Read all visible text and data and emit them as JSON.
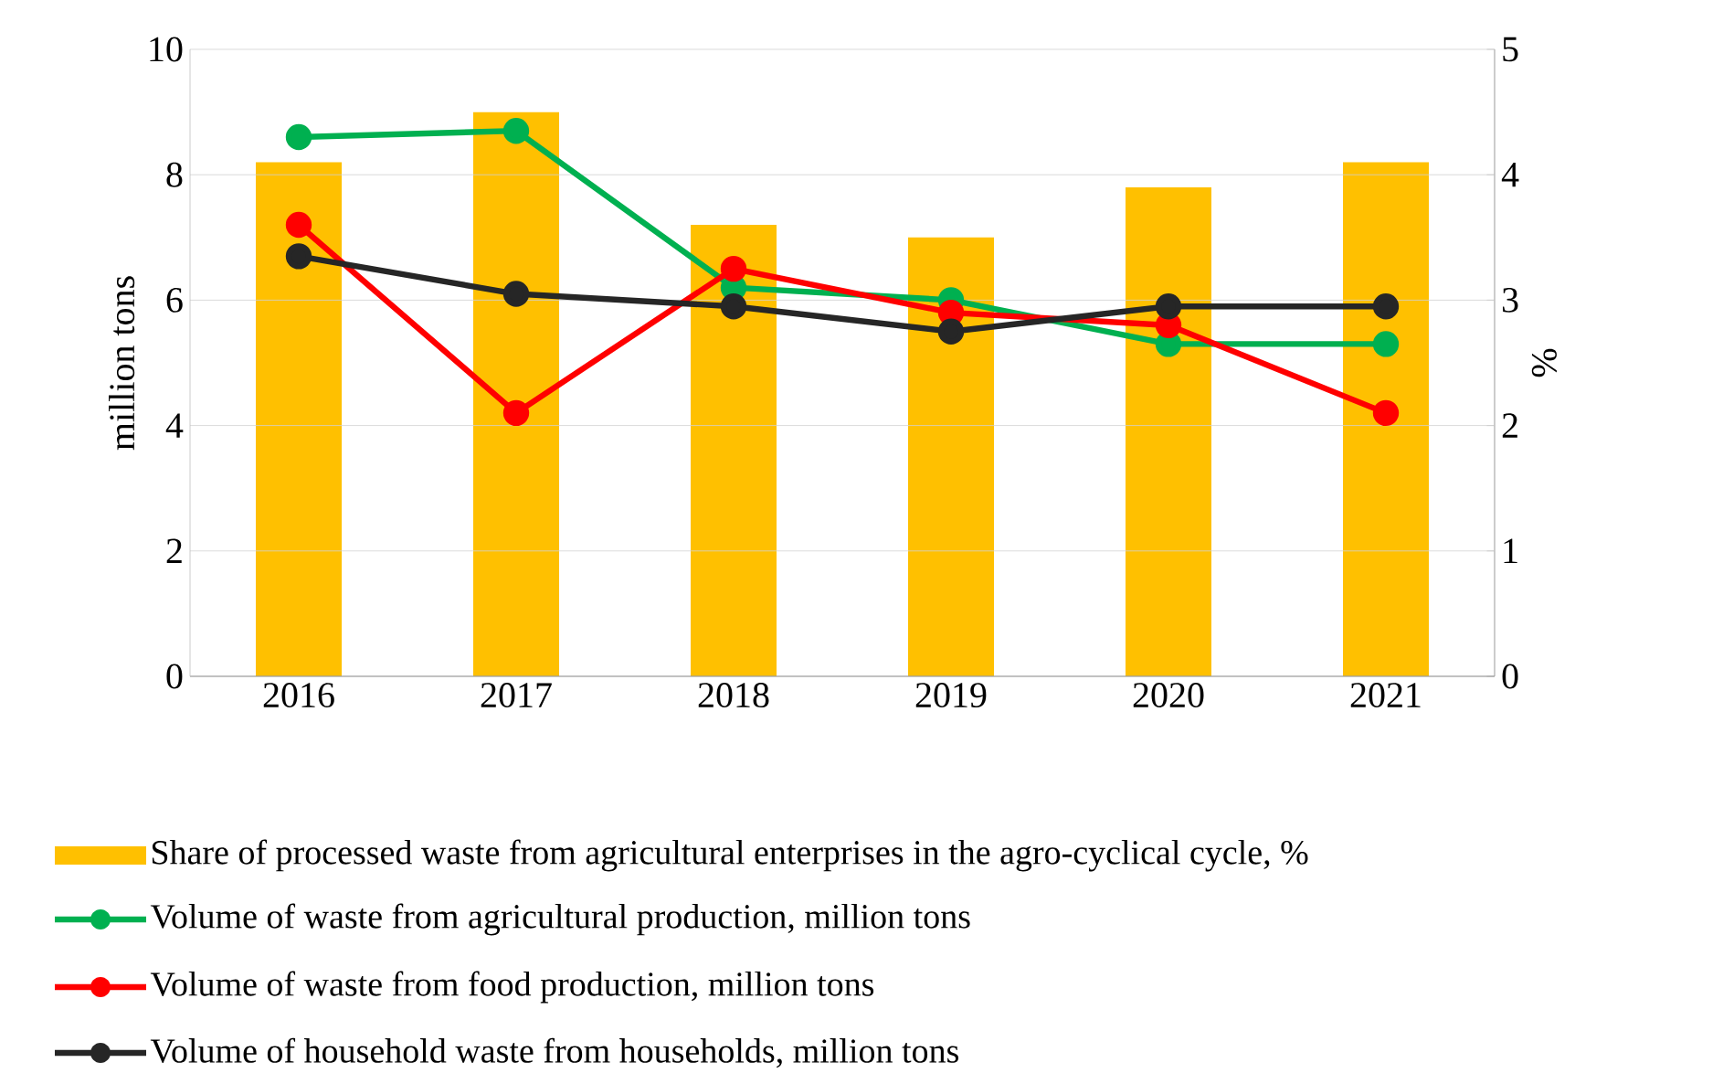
{
  "chart_data": {
    "type": "line",
    "categories": [
      "2016",
      "2017",
      "2018",
      "2019",
      "2020",
      "2021"
    ],
    "ylabel": "million tons",
    "y2label": "%",
    "ylim": [
      0,
      10
    ],
    "yticks": [
      0,
      2,
      4,
      6,
      8,
      10
    ],
    "y2lim": [
      0,
      5
    ],
    "y2ticks": [
      0,
      1,
      2,
      3,
      4,
      5
    ],
    "grid": "y",
    "legend": "bottom",
    "marker": "circle",
    "line_style": "solid",
    "series": [
      {
        "name": "Share of processed waste from agricultural enterprises in the agro-cyclical cycle, %",
        "type": "bar",
        "axis": "y2",
        "color": "#ffc000",
        "values": [
          4.1,
          4.5,
          3.6,
          3.5,
          3.9,
          4.1
        ]
      },
      {
        "name": "Volume of waste from agricultural production, million tons",
        "color": "#00b050",
        "values": [
          8.6,
          8.7,
          6.2,
          6.0,
          5.3,
          5.3
        ]
      },
      {
        "name": "Volume of waste from food production, million tons",
        "color": "#ff0000",
        "values": [
          7.2,
          4.2,
          6.5,
          5.8,
          5.6,
          4.2
        ]
      },
      {
        "name": "Volume of household waste from households, million tons",
        "color": "#262626",
        "values": [
          6.7,
          6.1,
          5.9,
          5.5,
          5.9,
          5.9
        ]
      }
    ]
  }
}
